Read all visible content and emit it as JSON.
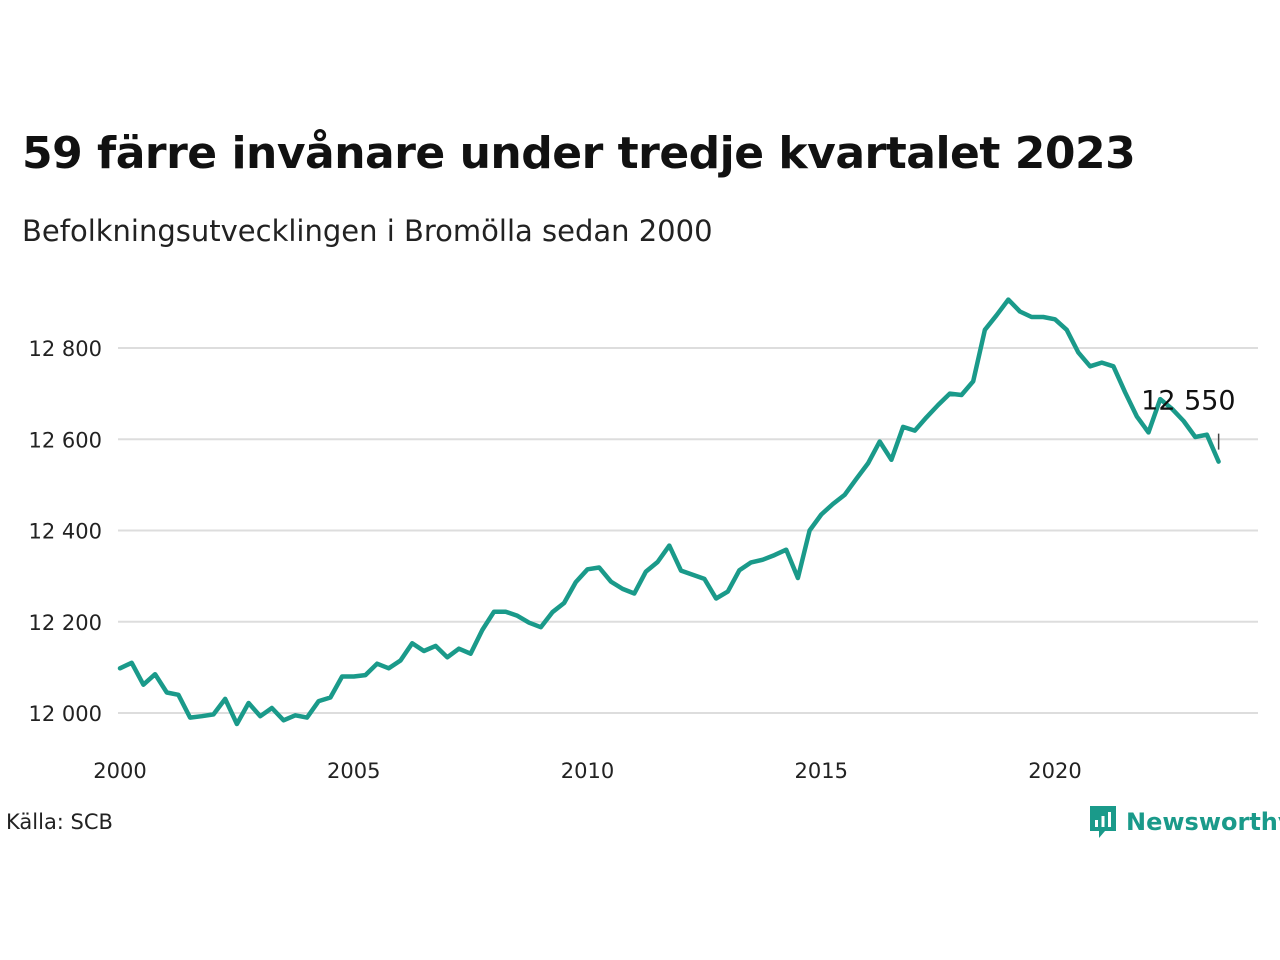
{
  "title": "59 färre invånare under tredje kvartalet 2023",
  "subtitle": "Befolkningsutvecklingen i Bromölla sedan 2000",
  "source": "Källa: SCB",
  "brand": {
    "name": "Newsworthy",
    "icon": "newsworthy-logo-icon",
    "color": "#1a9a8a"
  },
  "chart_data": {
    "type": "line",
    "color": "#1a9a8a",
    "grid": true,
    "xlim": [
      2000,
      2024.3
    ],
    "ylim": [
      11920,
      12930
    ],
    "x_ticks": [
      2000,
      2005,
      2010,
      2015,
      2020
    ],
    "x_tick_labels": [
      "2000",
      "2005",
      "2010",
      "2015",
      "2020"
    ],
    "y_ticks": [
      12000,
      12200,
      12400,
      12600,
      12800
    ],
    "y_tick_labels": [
      "12 000",
      "12 200",
      "12 400",
      "12 600",
      "12 800"
    ],
    "end_label": "12 550",
    "series": [
      {
        "x": [
          2000.0,
          2000.25,
          2000.5,
          2000.75,
          2001.0,
          2001.25,
          2001.5,
          2001.75,
          2002.0,
          2002.25,
          2002.5,
          2002.75,
          2003.0,
          2003.25,
          2003.5,
          2003.75,
          2004.0,
          2004.25,
          2004.5,
          2004.75,
          2005.0,
          2005.25,
          2005.5,
          2005.75,
          2006.0,
          2006.25,
          2006.5,
          2006.75,
          2007.0,
          2007.25,
          2007.5,
          2007.75,
          2008.0,
          2008.25,
          2008.5,
          2008.75,
          2009.0,
          2009.25,
          2009.5,
          2009.75,
          2010.0,
          2010.25,
          2010.5,
          2010.75,
          2011.0,
          2011.25,
          2011.5,
          2011.75,
          2012.0,
          2012.25,
          2012.5,
          2012.75,
          2013.0,
          2013.25,
          2013.5,
          2013.75,
          2014.0,
          2014.25,
          2014.5,
          2014.75,
          2015.0,
          2015.25,
          2015.5,
          2015.75,
          2016.0,
          2016.25,
          2016.5,
          2016.75,
          2017.0,
          2017.25,
          2017.5,
          2017.75,
          2018.0,
          2018.25,
          2018.5,
          2018.75,
          2019.0,
          2019.25,
          2019.5,
          2019.75,
          2020.0,
          2020.25,
          2020.5,
          2020.75,
          2021.0,
          2021.25,
          2021.5,
          2021.75,
          2022.0,
          2022.25,
          2022.5,
          2022.75,
          2023.0,
          2023.25,
          2023.5
        ],
        "y": [
          12098,
          12110,
          12062,
          12085,
          12045,
          12040,
          11990,
          11993,
          11997,
          12031,
          11976,
          12022,
          11993,
          12011,
          11984,
          11995,
          11990,
          12026,
          12034,
          12080,
          12080,
          12083,
          12108,
          12098,
          12115,
          12153,
          12136,
          12147,
          12122,
          12141,
          12130,
          12182,
          12222,
          12222,
          12213,
          12198,
          12188,
          12221,
          12241,
          12287,
          12315,
          12319,
          12288,
          12272,
          12262,
          12310,
          12331,
          12367,
          12312,
          12303,
          12294,
          12251,
          12266,
          12313,
          12330,
          12336,
          12346,
          12358,
          12296,
          12400,
          12435,
          12458,
          12478,
          12513,
          12547,
          12595,
          12555,
          12627,
          12619,
          12648,
          12675,
          12700,
          12697,
          12727,
          12840,
          12872,
          12906,
          12880,
          12868,
          12868,
          12863,
          12840,
          12790,
          12760,
          12768,
          12760,
          12703,
          12650,
          12615,
          12688,
          12667,
          12640,
          12605,
          12610,
          12551
        ]
      }
    ]
  }
}
